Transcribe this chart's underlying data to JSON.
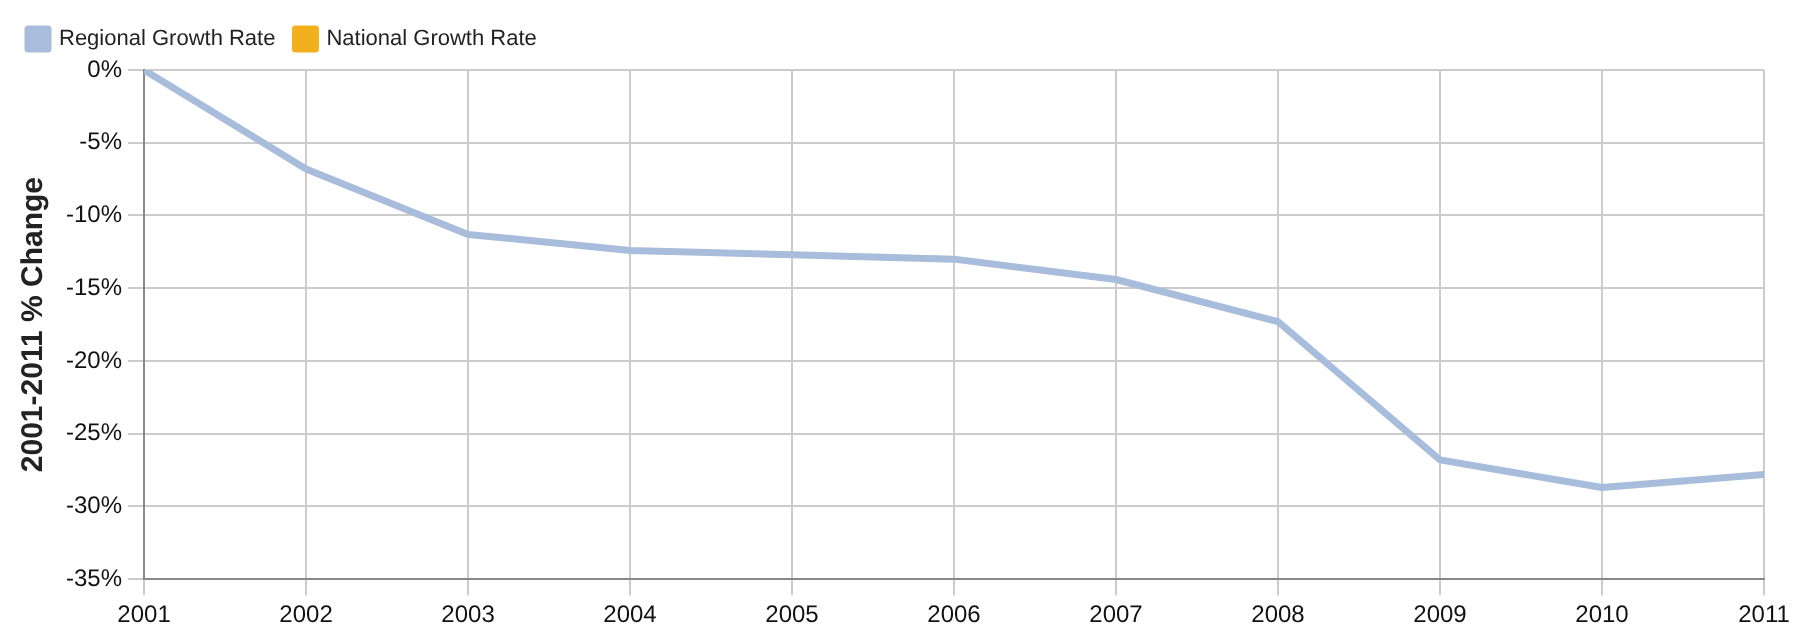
{
  "chart_data": {
    "type": "line",
    "ylabel": "2001-2011 % Change",
    "x": [
      2001,
      2002,
      2003,
      2004,
      2005,
      2006,
      2007,
      2008,
      2009,
      2010,
      2011
    ],
    "series": [
      {
        "name": "Regional Growth Rate",
        "color": "#a7bddb",
        "values": [
          0,
          -6.8,
          -11.3,
          -12.4,
          -12.7,
          -13.0,
          -14.4,
          -17.3,
          -26.8,
          -28.7,
          -27.8
        ]
      },
      {
        "name": "National Growth Rate",
        "color": "#f2b01e",
        "values": [
          null,
          null,
          null,
          null,
          null,
          null,
          null,
          null,
          null,
          null,
          null
        ]
      }
    ],
    "xlim": [
      2001,
      2011
    ],
    "xticks": [
      2001,
      2002,
      2003,
      2004,
      2005,
      2006,
      2007,
      2008,
      2009,
      2010,
      2011
    ],
    "ylim": [
      -35,
      0
    ],
    "yticks": [
      {
        "value": 0,
        "label": "0%"
      },
      {
        "value": -5,
        "label": "-5%"
      },
      {
        "value": -10,
        "label": "-10%"
      },
      {
        "value": -15,
        "label": "-15%"
      },
      {
        "value": -20,
        "label": "-20%"
      },
      {
        "value": -25,
        "label": "-25%"
      },
      {
        "value": -30,
        "label": "-30%"
      },
      {
        "value": -35,
        "label": "-35%"
      }
    ],
    "grid": true,
    "legend": "top left",
    "marker": "none",
    "line_style": "solid"
  }
}
